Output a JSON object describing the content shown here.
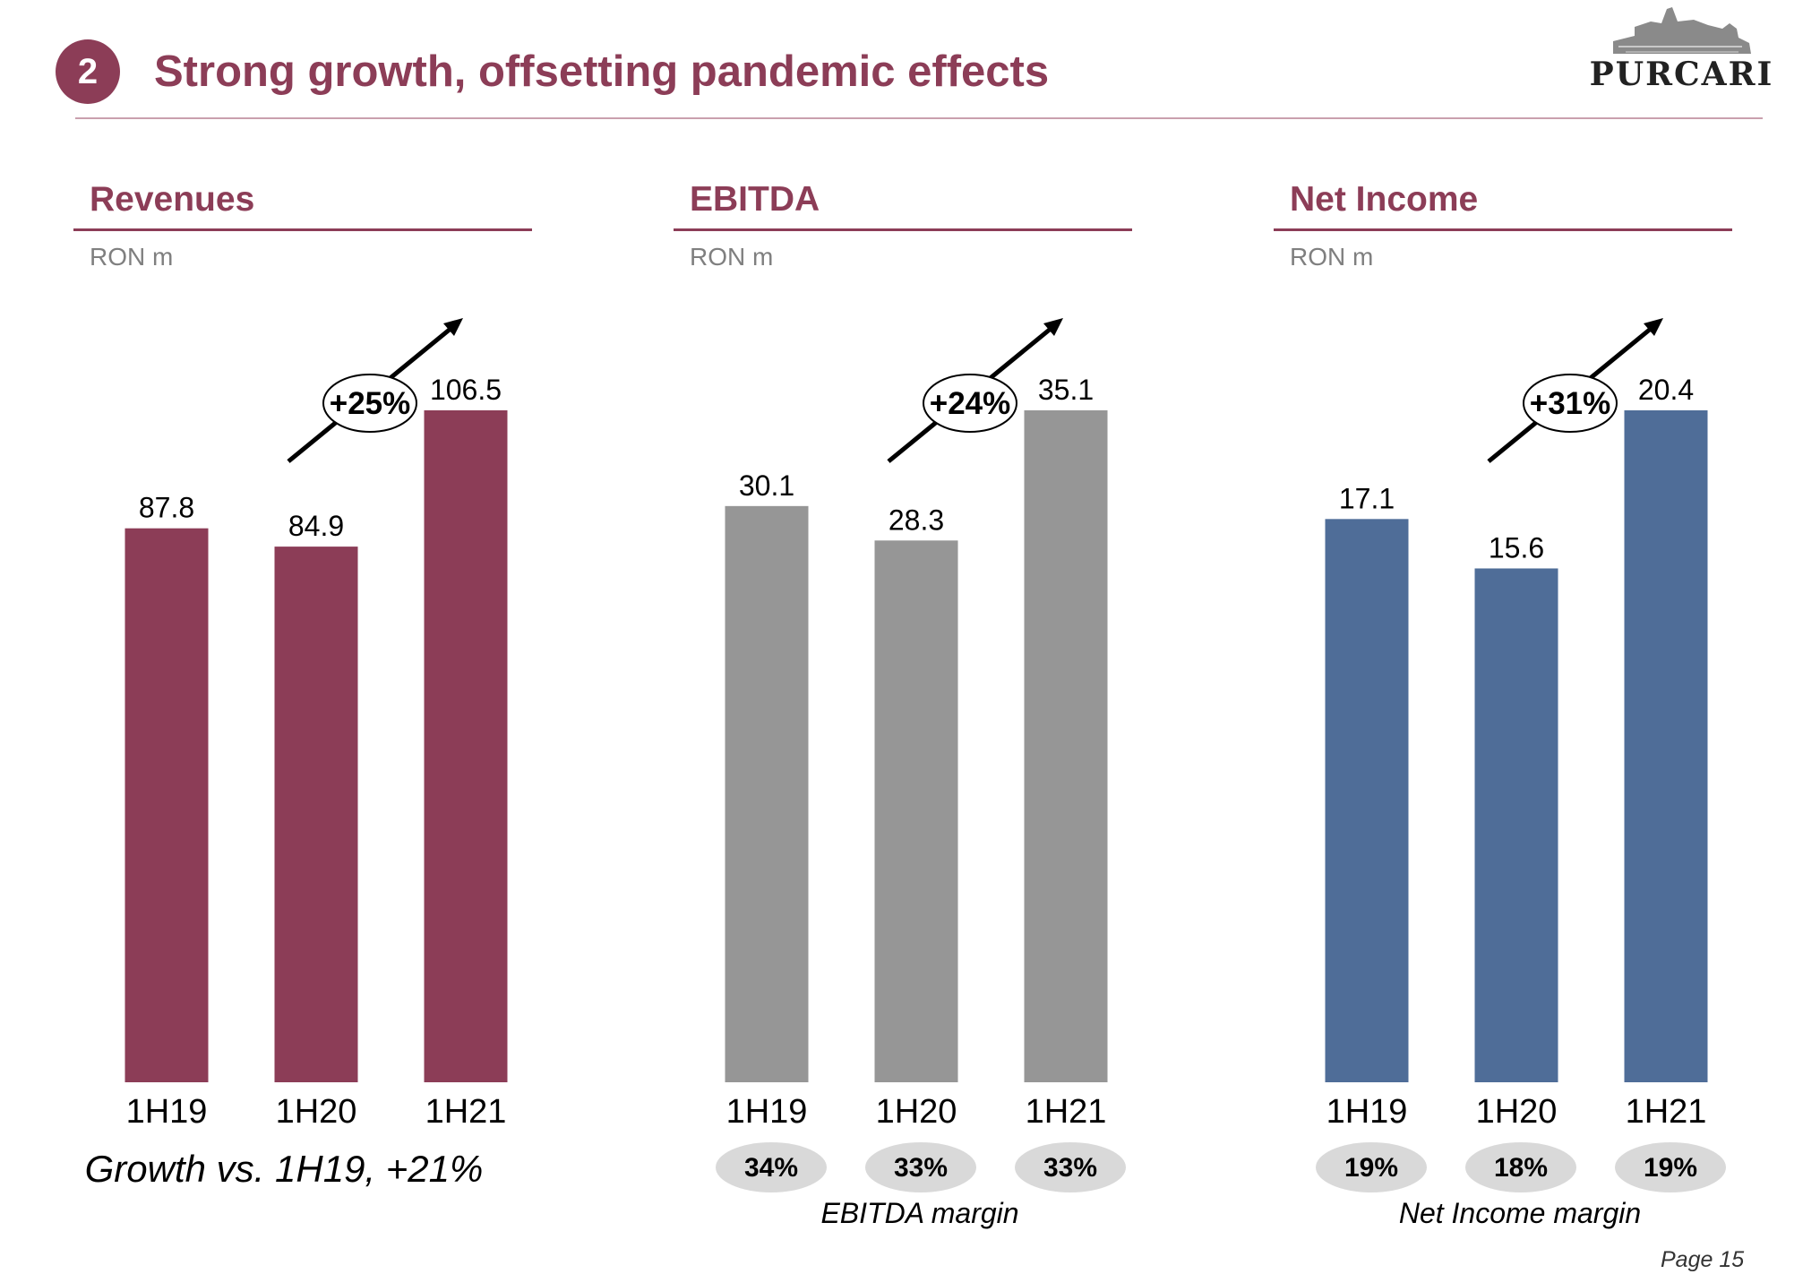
{
  "header": {
    "slide_number": "2",
    "title": "Strong growth, offsetting pandemic effects",
    "logo_text": "PURCARI"
  },
  "chart_data": [
    {
      "type": "bar",
      "title": "Revenues",
      "unit": "RON m",
      "categories": [
        "1H19",
        "1H20",
        "1H21"
      ],
      "values": [
        87.8,
        84.9,
        106.5
      ],
      "value_labels": [
        "87.8",
        "84.9",
        "106.5"
      ],
      "color": "#8c3d57",
      "growth_label": "+25%",
      "footer": "Growth vs. 1H19, +21%"
    },
    {
      "type": "bar",
      "title": "EBITDA",
      "unit": "RON m",
      "categories": [
        "1H19",
        "1H20",
        "1H21"
      ],
      "values": [
        30.1,
        28.3,
        35.1
      ],
      "value_labels": [
        "30.1",
        "28.3",
        "35.1"
      ],
      "color": "#969696",
      "growth_label": "+24%",
      "margins": [
        "34%",
        "33%",
        "33%"
      ],
      "margin_label": "EBITDA margin"
    },
    {
      "type": "bar",
      "title": "Net Income",
      "unit": "RON m",
      "categories": [
        "1H19",
        "1H20",
        "1H21"
      ],
      "values": [
        17.1,
        15.6,
        20.4
      ],
      "value_labels": [
        "17.1",
        "15.6",
        "20.4"
      ],
      "color": "#4f6d98",
      "growth_label": "+31%",
      "margins": [
        "19%",
        "18%",
        "19%"
      ],
      "margin_label": "Net Income margin"
    }
  ],
  "footer": {
    "page": "Page 15"
  }
}
